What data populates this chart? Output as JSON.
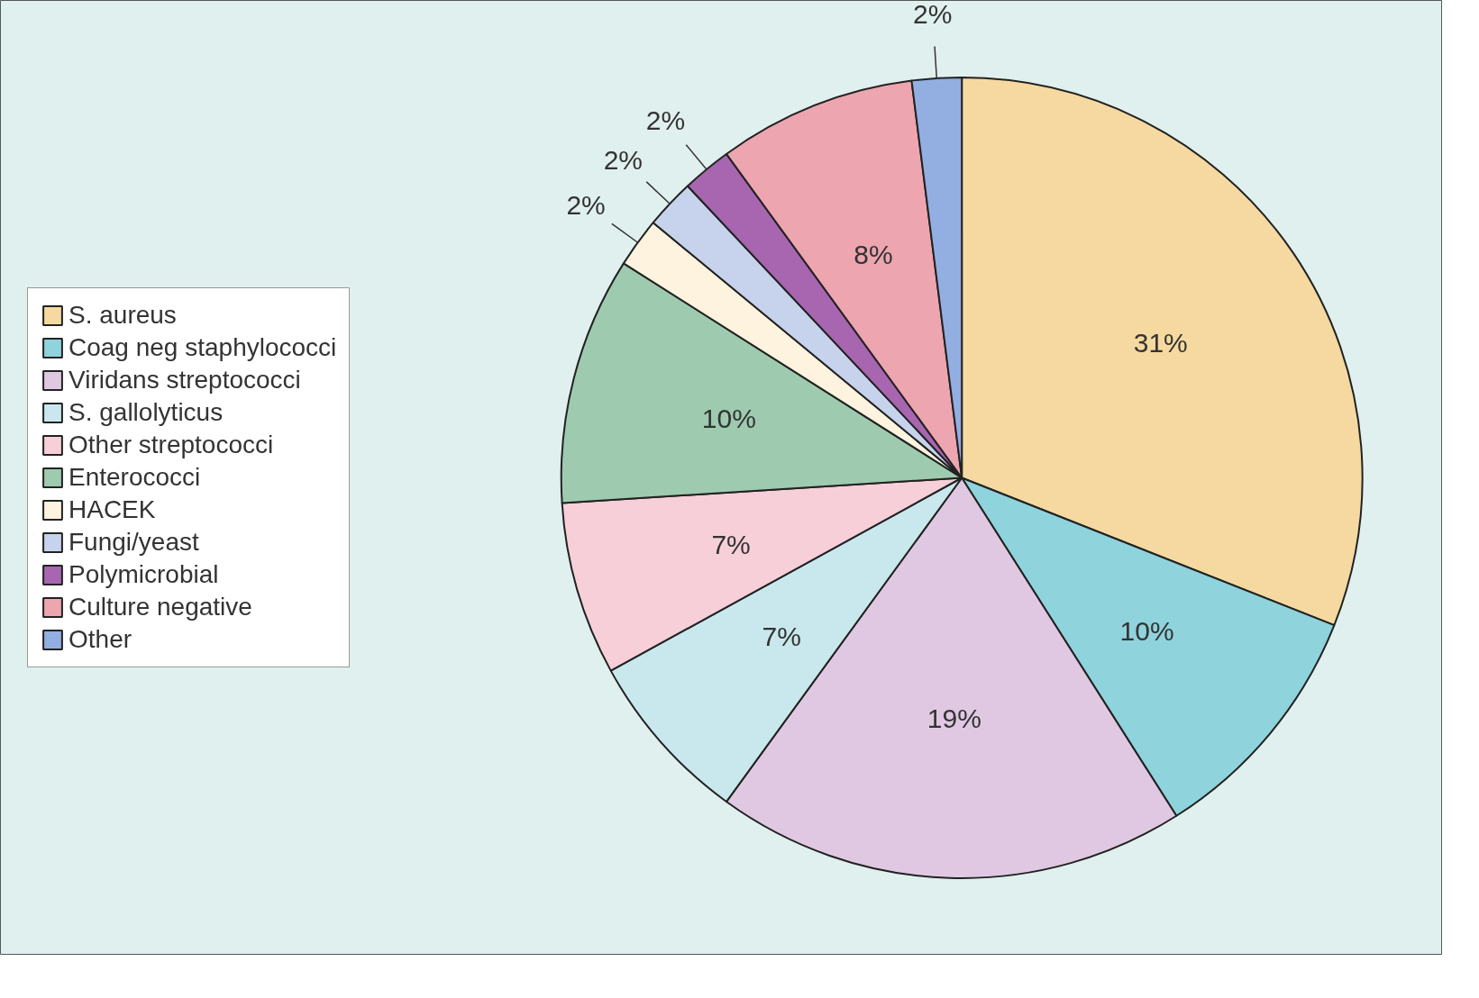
{
  "chart_data": {
    "type": "pie",
    "categories": [
      "S. aureus",
      "Coag neg staphylococci",
      "Viridans streptococci",
      "S. gallolyticus",
      "Other streptococci",
      "Enterococci",
      "HACEK",
      "Fungi/yeast",
      "Polymicrobial",
      "Culture negative",
      "Other"
    ],
    "values": [
      31,
      10,
      19,
      7,
      7,
      10,
      2,
      2,
      2,
      8,
      2
    ],
    "value_labels": [
      "31%",
      "10%",
      "19%",
      "7%",
      "7%",
      "10%",
      "2%",
      "2%",
      "2%",
      "8%",
      "2%"
    ],
    "colors": [
      "#f5d9a0",
      "#8fd3dc",
      "#e0c8e2",
      "#c8e8ee",
      "#f6cfd8",
      "#9ecbb0",
      "#fdf3df",
      "#c7d3ec",
      "#a865b0",
      "#eda5b0",
      "#93aee0"
    ],
    "legend": "left"
  }
}
